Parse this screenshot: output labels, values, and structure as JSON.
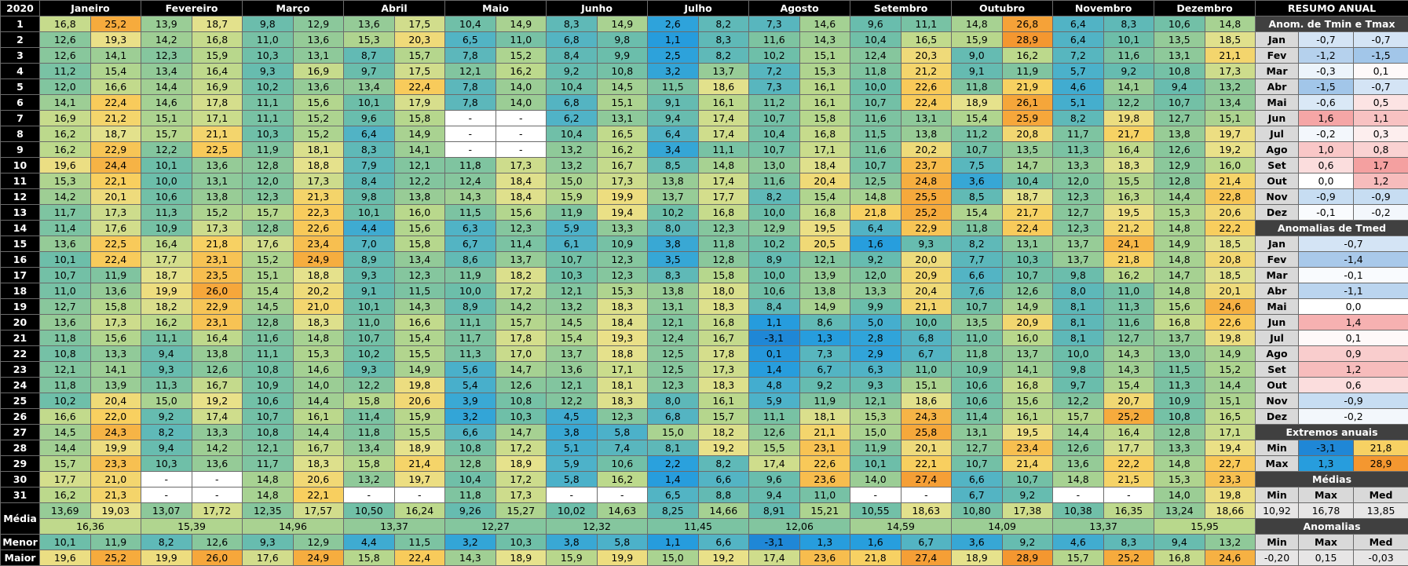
{
  "header": {
    "year": "2020",
    "months": [
      "Janeiro",
      "Fevereiro",
      "Março",
      "Abril",
      "Maio",
      "Junho",
      "Julho",
      "Agosto",
      "Setembro",
      "Outubro",
      "Novembro",
      "Dezembro"
    ]
  },
  "table": {
    "rows": [
      {
        "day": "1",
        "cells": [
          "16,8",
          "25,2",
          "13,9",
          "18,7",
          "9,8",
          "12,9",
          "13,6",
          "17,5",
          "10,4",
          "14,9",
          "8,3",
          "14,9",
          "2,6",
          "8,2",
          "7,3",
          "14,6",
          "9,6",
          "11,1",
          "14,8",
          "26,8",
          "6,4",
          "8,3",
          "10,6",
          "14,8"
        ]
      },
      {
        "day": "2",
        "cells": [
          "12,6",
          "19,3",
          "14,2",
          "16,8",
          "11,0",
          "13,6",
          "15,3",
          "20,3",
          "6,5",
          "11,0",
          "6,8",
          "9,8",
          "1,1",
          "8,3",
          "11,6",
          "14,3",
          "10,4",
          "16,5",
          "15,9",
          "28,9",
          "6,4",
          "10,1",
          "13,5",
          "18,5"
        ]
      },
      {
        "day": "3",
        "cells": [
          "12,6",
          "14,1",
          "12,3",
          "15,9",
          "10,3",
          "13,1",
          "8,7",
          "15,7",
          "7,8",
          "15,2",
          "8,4",
          "9,9",
          "2,5",
          "8,2",
          "10,2",
          "15,1",
          "12,4",
          "20,3",
          "9,0",
          "16,2",
          "7,2",
          "11,6",
          "13,1",
          "21,1"
        ]
      },
      {
        "day": "4",
        "cells": [
          "11,2",
          "15,4",
          "13,4",
          "16,4",
          "9,3",
          "16,9",
          "9,7",
          "17,5",
          "12,1",
          "16,2",
          "9,2",
          "10,8",
          "3,2",
          "13,7",
          "7,2",
          "15,3",
          "11,8",
          "21,2",
          "9,1",
          "11,9",
          "5,7",
          "9,2",
          "10,8",
          "17,3"
        ]
      },
      {
        "day": "5",
        "cells": [
          "12,0",
          "16,6",
          "14,4",
          "16,9",
          "10,2",
          "13,6",
          "13,4",
          "22,4",
          "7,8",
          "14,0",
          "10,4",
          "14,5",
          "11,5",
          "18,6",
          "7,3",
          "16,1",
          "10,0",
          "22,6",
          "11,8",
          "21,9",
          "4,6",
          "14,1",
          "9,4",
          "13,2"
        ]
      },
      {
        "day": "6",
        "cells": [
          "14,1",
          "22,4",
          "14,6",
          "17,8",
          "11,1",
          "15,6",
          "10,1",
          "17,9",
          "7,8",
          "14,0",
          "6,8",
          "15,1",
          "9,1",
          "16,1",
          "11,2",
          "16,1",
          "10,7",
          "22,4",
          "18,9",
          "26,1",
          "5,1",
          "12,2",
          "10,7",
          "13,4"
        ]
      },
      {
        "day": "7",
        "cells": [
          "16,9",
          "21,2",
          "15,1",
          "17,1",
          "11,1",
          "15,2",
          "9,6",
          "15,8",
          "-",
          "-",
          "6,2",
          "13,1",
          "9,4",
          "17,4",
          "10,7",
          "15,8",
          "11,6",
          "13,1",
          "15,4",
          "25,9",
          "8,2",
          "19,8",
          "12,7",
          "15,1"
        ]
      },
      {
        "day": "8",
        "cells": [
          "16,2",
          "18,7",
          "15,7",
          "21,1",
          "10,3",
          "15,2",
          "6,4",
          "14,9",
          "-",
          "-",
          "10,4",
          "16,5",
          "6,4",
          "17,4",
          "10,4",
          "16,8",
          "11,5",
          "13,8",
          "11,2",
          "20,8",
          "11,7",
          "21,7",
          "13,8",
          "19,7"
        ]
      },
      {
        "day": "9",
        "cells": [
          "16,2",
          "22,9",
          "12,2",
          "22,5",
          "11,9",
          "18,1",
          "8,3",
          "14,1",
          "-",
          "-",
          "13,2",
          "16,2",
          "3,4",
          "11,1",
          "10,7",
          "17,1",
          "11,6",
          "20,2",
          "10,7",
          "13,5",
          "11,3",
          "16,4",
          "12,6",
          "19,2"
        ]
      },
      {
        "day": "10",
        "cells": [
          "19,6",
          "24,4",
          "10,1",
          "13,6",
          "12,8",
          "18,8",
          "7,9",
          "12,1",
          "11,8",
          "17,3",
          "13,2",
          "16,7",
          "8,5",
          "14,8",
          "13,0",
          "18,4",
          "10,7",
          "23,7",
          "7,5",
          "14,7",
          "13,3",
          "18,3",
          "12,9",
          "16,0"
        ]
      },
      {
        "day": "11",
        "cells": [
          "15,3",
          "22,1",
          "10,0",
          "13,1",
          "12,0",
          "17,3",
          "8,4",
          "12,2",
          "12,4",
          "18,4",
          "15,0",
          "17,3",
          "13,8",
          "17,4",
          "11,6",
          "20,4",
          "12,5",
          "24,8",
          "3,6",
          "10,4",
          "12,0",
          "15,5",
          "12,8",
          "21,4"
        ]
      },
      {
        "day": "12",
        "cells": [
          "14,2",
          "20,1",
          "10,6",
          "13,8",
          "12,3",
          "21,3",
          "9,8",
          "13,8",
          "14,3",
          "18,4",
          "15,9",
          "19,9",
          "13,7",
          "17,7",
          "8,2",
          "15,4",
          "14,8",
          "25,5",
          "8,5",
          "18,7",
          "12,3",
          "16,3",
          "14,4",
          "22,8"
        ]
      },
      {
        "day": "13",
        "cells": [
          "11,7",
          "17,3",
          "11,3",
          "15,2",
          "15,7",
          "22,3",
          "10,1",
          "16,0",
          "11,5",
          "15,6",
          "11,9",
          "19,4",
          "10,2",
          "16,8",
          "10,0",
          "16,8",
          "21,8",
          "25,2",
          "15,4",
          "21,7",
          "12,7",
          "19,5",
          "15,3",
          "20,6"
        ]
      },
      {
        "day": "14",
        "cells": [
          "11,4",
          "17,6",
          "10,9",
          "17,3",
          "12,8",
          "22,6",
          "4,4",
          "15,6",
          "6,3",
          "12,3",
          "5,9",
          "13,3",
          "8,0",
          "12,3",
          "12,9",
          "19,5",
          "6,4",
          "22,9",
          "11,8",
          "22,4",
          "12,3",
          "21,2",
          "14,8",
          "22,2"
        ]
      },
      {
        "day": "15",
        "cells": [
          "13,6",
          "22,5",
          "16,4",
          "21,8",
          "17,6",
          "23,4",
          "7,0",
          "15,8",
          "6,7",
          "11,4",
          "6,1",
          "10,9",
          "3,8",
          "11,8",
          "10,2",
          "20,5",
          "1,6",
          "9,3",
          "8,2",
          "13,1",
          "13,7",
          "24,1",
          "14,9",
          "18,5"
        ]
      },
      {
        "day": "16",
        "cells": [
          "10,1",
          "22,4",
          "17,7",
          "23,1",
          "15,2",
          "24,9",
          "8,9",
          "13,4",
          "8,6",
          "13,7",
          "10,7",
          "12,3",
          "3,5",
          "12,8",
          "8,9",
          "12,1",
          "9,2",
          "20,0",
          "7,7",
          "10,3",
          "13,7",
          "21,8",
          "14,8",
          "20,8"
        ]
      },
      {
        "day": "17",
        "cells": [
          "10,7",
          "11,9",
          "18,7",
          "23,5",
          "15,1",
          "18,8",
          "9,3",
          "12,3",
          "11,9",
          "18,2",
          "10,3",
          "12,3",
          "8,3",
          "15,8",
          "10,0",
          "13,9",
          "12,0",
          "20,9",
          "6,6",
          "10,7",
          "9,8",
          "16,2",
          "14,7",
          "18,5"
        ]
      },
      {
        "day": "18",
        "cells": [
          "11,0",
          "13,6",
          "19,9",
          "26,0",
          "15,4",
          "20,2",
          "9,1",
          "11,5",
          "10,0",
          "17,2",
          "12,1",
          "15,3",
          "13,8",
          "18,0",
          "10,6",
          "13,8",
          "13,3",
          "20,4",
          "7,6",
          "12,6",
          "8,0",
          "11,0",
          "14,8",
          "20,1"
        ]
      },
      {
        "day": "19",
        "cells": [
          "12,7",
          "15,8",
          "18,2",
          "22,9",
          "14,5",
          "21,0",
          "10,1",
          "14,3",
          "8,9",
          "14,2",
          "13,2",
          "18,3",
          "13,1",
          "18,3",
          "8,4",
          "14,9",
          "9,9",
          "21,1",
          "10,7",
          "14,9",
          "8,1",
          "11,3",
          "15,6",
          "24,6"
        ]
      },
      {
        "day": "20",
        "cells": [
          "13,6",
          "17,3",
          "16,2",
          "23,1",
          "12,8",
          "18,3",
          "11,0",
          "16,6",
          "11,1",
          "15,7",
          "14,5",
          "18,4",
          "12,1",
          "16,8",
          "1,1",
          "8,6",
          "5,0",
          "10,0",
          "13,5",
          "20,9",
          "8,1",
          "11,6",
          "16,8",
          "22,6"
        ]
      },
      {
        "day": "21",
        "cells": [
          "11,8",
          "15,6",
          "11,1",
          "16,4",
          "11,6",
          "14,8",
          "10,7",
          "15,4",
          "11,7",
          "17,8",
          "15,4",
          "19,3",
          "12,4",
          "16,7",
          "-3,1",
          "1,3",
          "2,8",
          "6,8",
          "11,0",
          "16,0",
          "8,1",
          "12,7",
          "13,7",
          "19,8"
        ]
      },
      {
        "day": "22",
        "cells": [
          "10,8",
          "13,3",
          "9,4",
          "13,8",
          "11,1",
          "15,3",
          "10,2",
          "15,5",
          "11,3",
          "17,0",
          "13,7",
          "18,8",
          "12,5",
          "17,8",
          "0,1",
          "7,3",
          "2,9",
          "6,7",
          "11,8",
          "13,7",
          "10,0",
          "14,3",
          "13,0",
          "14,9"
        ]
      },
      {
        "day": "23",
        "cells": [
          "12,1",
          "14,1",
          "9,3",
          "12,6",
          "10,8",
          "14,6",
          "9,3",
          "14,9",
          "5,6",
          "14,7",
          "13,6",
          "17,1",
          "12,5",
          "17,3",
          "1,4",
          "6,7",
          "6,3",
          "11,0",
          "10,9",
          "14,1",
          "9,8",
          "14,3",
          "11,5",
          "15,2"
        ]
      },
      {
        "day": "24",
        "cells": [
          "11,8",
          "13,9",
          "11,3",
          "16,7",
          "10,9",
          "14,0",
          "12,2",
          "19,8",
          "5,4",
          "12,6",
          "12,1",
          "18,1",
          "12,3",
          "18,3",
          "4,8",
          "9,2",
          "9,3",
          "15,1",
          "10,6",
          "16,8",
          "9,7",
          "15,4",
          "11,3",
          "14,4"
        ]
      },
      {
        "day": "25",
        "cells": [
          "10,2",
          "20,4",
          "15,0",
          "19,2",
          "10,6",
          "14,4",
          "15,8",
          "20,6",
          "3,9",
          "10,8",
          "12,2",
          "18,3",
          "8,0",
          "16,1",
          "5,9",
          "11,9",
          "12,1",
          "18,6",
          "10,6",
          "15,6",
          "12,2",
          "20,7",
          "10,9",
          "15,1"
        ]
      },
      {
        "day": "26",
        "cells": [
          "16,6",
          "22,0",
          "9,2",
          "17,4",
          "10,7",
          "16,1",
          "11,4",
          "15,9",
          "3,2",
          "10,3",
          "4,5",
          "12,3",
          "6,8",
          "15,7",
          "11,1",
          "18,1",
          "15,3",
          "24,3",
          "11,4",
          "16,1",
          "15,7",
          "25,2",
          "10,8",
          "16,5"
        ]
      },
      {
        "day": "27",
        "cells": [
          "14,5",
          "24,3",
          "8,2",
          "13,3",
          "10,8",
          "14,4",
          "11,8",
          "15,5",
          "6,6",
          "14,7",
          "3,8",
          "5,8",
          "15,0",
          "18,2",
          "12,6",
          "21,1",
          "15,0",
          "25,8",
          "13,1",
          "19,5",
          "14,4",
          "16,4",
          "12,8",
          "17,1"
        ]
      },
      {
        "day": "28",
        "cells": [
          "14,4",
          "19,9",
          "9,4",
          "14,2",
          "12,1",
          "16,7",
          "13,4",
          "18,9",
          "10,8",
          "17,2",
          "5,1",
          "7,4",
          "8,1",
          "19,2",
          "15,5",
          "23,1",
          "11,9",
          "20,1",
          "12,7",
          "23,4",
          "12,6",
          "17,7",
          "13,3",
          "19,4"
        ]
      },
      {
        "day": "29",
        "cells": [
          "15,7",
          "23,3",
          "10,3",
          "13,6",
          "11,7",
          "18,3",
          "15,8",
          "21,4",
          "12,8",
          "18,9",
          "5,9",
          "10,6",
          "2,2",
          "8,2",
          "17,4",
          "22,6",
          "10,1",
          "22,1",
          "10,7",
          "21,4",
          "13,6",
          "22,2",
          "14,8",
          "22,7"
        ]
      },
      {
        "day": "30",
        "cells": [
          "17,7",
          "21,0",
          "-",
          "-",
          "14,8",
          "20,6",
          "13,2",
          "19,7",
          "10,4",
          "17,2",
          "5,8",
          "16,2",
          "1,4",
          "6,6",
          "9,6",
          "23,6",
          "14,0",
          "27,4",
          "6,6",
          "10,7",
          "14,8",
          "21,5",
          "15,3",
          "23,3"
        ]
      },
      {
        "day": "31",
        "cells": [
          "16,2",
          "21,3",
          "-",
          "-",
          "14,8",
          "22,1",
          "-",
          "-",
          "11,8",
          "17,3",
          "-",
          "-",
          "6,5",
          "8,8",
          "9,4",
          "11,0",
          "-",
          "-",
          "6,7",
          "9,2",
          "-",
          "-",
          "14,0",
          "19,8"
        ]
      }
    ],
    "mean_label": "Média",
    "means": [
      "13,69",
      "19,03",
      "13,07",
      "17,72",
      "12,35",
      "17,57",
      "10,50",
      "16,24",
      "9,26",
      "15,27",
      "10,02",
      "14,63",
      "8,25",
      "14,66",
      "8,91",
      "15,21",
      "10,55",
      "18,63",
      "10,80",
      "17,38",
      "10,38",
      "16,35",
      "13,24",
      "18,66"
    ],
    "mean_totals": [
      "16,36",
      "15,39",
      "14,96",
      "13,37",
      "12,27",
      "12,32",
      "11,45",
      "12,06",
      "14,59",
      "14,09",
      "13,37",
      "15,95"
    ],
    "min_label": "Menor",
    "mins": [
      "10,1",
      "11,9",
      "8,2",
      "12,6",
      "9,3",
      "12,9",
      "4,4",
      "11,5",
      "3,2",
      "10,3",
      "3,8",
      "5,8",
      "1,1",
      "6,6",
      "-3,1",
      "1,3",
      "1,6",
      "6,7",
      "3,6",
      "9,2",
      "4,6",
      "8,3",
      "9,4",
      "13,2"
    ],
    "max_label": "Maior",
    "maxs": [
      "19,6",
      "25,2",
      "19,9",
      "26,0",
      "17,6",
      "24,9",
      "15,8",
      "22,4",
      "14,3",
      "18,9",
      "15,9",
      "19,9",
      "15,0",
      "19,2",
      "17,4",
      "23,6",
      "21,8",
      "27,4",
      "18,9",
      "28,9",
      "15,7",
      "25,2",
      "16,8",
      "24,6"
    ]
  },
  "summary": {
    "title": "RESUMO ANUAL",
    "anom_title": "Anom. de Tmin e Tmax",
    "anom": [
      {
        "month": "Jan",
        "min": "-0,7",
        "max": "-0,7"
      },
      {
        "month": "Fev",
        "min": "-1,2",
        "max": "-1,5"
      },
      {
        "month": "Mar",
        "min": "-0,3",
        "max": "0,1"
      },
      {
        "month": "Abr",
        "min": "-1,5",
        "max": "-0,7"
      },
      {
        "month": "Mai",
        "min": "-0,6",
        "max": "0,5"
      },
      {
        "month": "Jun",
        "min": "1,6",
        "max": "1,1"
      },
      {
        "month": "Jul",
        "min": "-0,2",
        "max": "0,3"
      },
      {
        "month": "Ago",
        "min": "1,0",
        "max": "0,8"
      },
      {
        "month": "Set",
        "min": "0,6",
        "max": "1,7"
      },
      {
        "month": "Out",
        "min": "0,0",
        "max": "1,2"
      },
      {
        "month": "Nov",
        "min": "-0,9",
        "max": "-0,9"
      },
      {
        "month": "Dez",
        "min": "-0,1",
        "max": "-0,2"
      }
    ],
    "tmed_title": "Anomalias de Tmed",
    "tmed": [
      {
        "month": "Jan",
        "value": "-0,7"
      },
      {
        "month": "Fev",
        "value": "-1,4"
      },
      {
        "month": "Mar",
        "value": "-0,1"
      },
      {
        "month": "Abr",
        "value": "-1,1"
      },
      {
        "month": "Mai",
        "value": "0,0"
      },
      {
        "month": "Jun",
        "value": "1,4"
      },
      {
        "month": "Jul",
        "value": "0,1"
      },
      {
        "month": "Ago",
        "value": "0,9"
      },
      {
        "month": "Set",
        "value": "1,2"
      },
      {
        "month": "Out",
        "value": "0,6"
      },
      {
        "month": "Nov",
        "value": "-0,9"
      },
      {
        "month": "Dez",
        "value": "-0,2"
      }
    ],
    "extremes_title": "Extremos anuais",
    "extremes": [
      {
        "label": "Min",
        "values": [
          "-3,1",
          "21,8"
        ]
      },
      {
        "label": "Max",
        "values": [
          "1,3",
          "28,9"
        ]
      }
    ],
    "means_title": "Médias",
    "means_headers": [
      "Min",
      "Max",
      "Med"
    ],
    "means_values": [
      "10,92",
      "16,78",
      "13,85"
    ],
    "anomalies_title": "Anomalias",
    "anomalies_headers": [
      "Min",
      "Max",
      "Med"
    ],
    "anomalies_values": [
      "-0,20",
      "0,15",
      "-0,03"
    ]
  }
}
